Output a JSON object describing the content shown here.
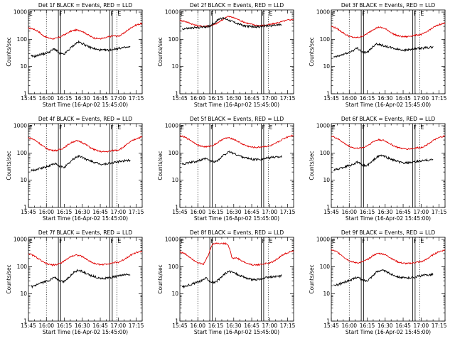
{
  "chart_data": {
    "type": "line",
    "x_tick_labels": [
      "15:45",
      "16:00",
      "16:15",
      "16:30",
      "16:45",
      "17:00",
      "17:15"
    ],
    "y_tick_labels": [
      "1",
      "10",
      "100",
      "1000"
    ],
    "ylim": [
      1,
      1200
    ],
    "y_scale": "log",
    "x_range_minutes_after_start": [
      0,
      95
    ],
    "ylabel": "Counts/sec",
    "xlabel": "Start Time (16-Apr-02 15:45:00)",
    "legend_text": "BLACK = Events, RED = LLD",
    "markers": {
      "dotted_minutes": [
        15,
        74
      ],
      "solid_minutes": [
        25,
        27,
        68,
        70
      ],
      "labels": [
        {
          "text": "E",
          "minute": 0
        },
        {
          "text": "F",
          "minute": 25
        },
        {
          "text": "F",
          "minute": 68
        },
        {
          "text": "E",
          "minute": 74
        }
      ]
    },
    "panels": [
      {
        "title": "Det 1f BLACK = Events, RED = LLD",
        "series_red": [
          260,
          240,
          200,
          140,
          115,
          105,
          110,
          130,
          160,
          200,
          220,
          210,
          170,
          130,
          110,
          105,
          110,
          125,
          135,
          130,
          160,
          220,
          290,
          350,
          380
        ],
        "series_black": [
          24,
          24,
          28,
          30,
          35,
          45,
          30,
          28,
          40,
          60,
          80,
          70,
          55,
          48,
          42,
          40,
          40,
          42,
          45,
          48,
          50,
          52
        ],
        "black_start": 2,
        "black_end": 85
      },
      {
        "title": "Det 2f BLACK = Events, RED = LLD",
        "series_red": [
          500,
          460,
          400,
          340,
          310,
          300,
          310,
          330,
          400,
          520,
          700,
          650,
          560,
          470,
          400,
          360,
          330,
          320,
          330,
          350,
          380,
          420,
          470,
          520,
          540
        ],
        "series_black": [
          240,
          250,
          260,
          270,
          280,
          290,
          320,
          420,
          600,
          580,
          500,
          420,
          360,
          320,
          300,
          290,
          290,
          300,
          310,
          320,
          330,
          340
        ],
        "black_start": 2,
        "black_end": 85
      },
      {
        "title": "Det 3f BLACK = Events, RED = LLD",
        "series_red": [
          300,
          260,
          200,
          150,
          125,
          115,
          120,
          140,
          180,
          240,
          280,
          260,
          210,
          160,
          135,
          125,
          125,
          135,
          145,
          150,
          180,
          240,
          300,
          360,
          390
        ],
        "series_black": [
          22,
          24,
          28,
          32,
          38,
          48,
          34,
          32,
          48,
          70,
          62,
          55,
          50,
          45,
          42,
          40,
          42,
          44,
          46,
          48,
          50,
          52
        ],
        "black_start": 2,
        "black_end": 85
      },
      {
        "title": "Det 4f BLACK = Events, RED = LLD",
        "series_red": [
          370,
          320,
          250,
          180,
          140,
          125,
          125,
          140,
          180,
          240,
          280,
          260,
          210,
          160,
          130,
          115,
          110,
          115,
          125,
          130,
          160,
          220,
          290,
          350,
          390
        ],
        "series_black": [
          22,
          24,
          27,
          30,
          34,
          42,
          32,
          30,
          40,
          60,
          78,
          68,
          55,
          48,
          42,
          38,
          40,
          42,
          46,
          50,
          52,
          55
        ],
        "black_start": 2,
        "black_end": 85
      },
      {
        "title": "Det 5f BLACK = Events, RED = LLD",
        "series_red": [
          430,
          380,
          310,
          240,
          190,
          170,
          170,
          190,
          240,
          320,
          360,
          340,
          280,
          220,
          185,
          165,
          160,
          165,
          175,
          180,
          210,
          270,
          340,
          410,
          450
        ],
        "series_black": [
          40,
          42,
          46,
          50,
          55,
          62,
          50,
          48,
          62,
          90,
          110,
          95,
          80,
          70,
          62,
          58,
          58,
          60,
          65,
          70,
          72,
          75
        ],
        "black_start": 2,
        "black_end": 85
      },
      {
        "title": "Det 6f BLACK = Events, RED = LLD",
        "series_red": [
          420,
          360,
          280,
          210,
          170,
          150,
          150,
          165,
          205,
          270,
          310,
          290,
          240,
          190,
          160,
          145,
          140,
          145,
          155,
          160,
          190,
          250,
          320,
          380,
          420
        ],
        "series_black": [
          24,
          26,
          30,
          34,
          38,
          46,
          36,
          34,
          46,
          68,
          82,
          72,
          60,
          52,
          46,
          42,
          44,
          46,
          50,
          52,
          55,
          58
        ],
        "black_start": 2,
        "black_end": 85
      },
      {
        "title": "Det 7f BLACK = Events, RED = LLD",
        "series_red": [
          300,
          260,
          200,
          150,
          125,
          115,
          120,
          140,
          180,
          240,
          270,
          250,
          200,
          155,
          130,
          120,
          120,
          130,
          140,
          145,
          175,
          230,
          290,
          340,
          370
        ],
        "series_black": [
          18,
          20,
          24,
          28,
          32,
          42,
          30,
          28,
          40,
          60,
          75,
          65,
          52,
          46,
          40,
          37,
          38,
          40,
          44,
          47,
          50,
          52
        ],
        "black_start": 2,
        "black_end": 85
      },
      {
        "title": "Det 8f BLACK = Events, RED = LLD",
        "series_red": [
          350,
          300,
          230,
          170,
          135,
          120,
          250,
          700,
          720,
          710,
          700,
          200,
          210,
          165,
          135,
          120,
          115,
          120,
          130,
          135,
          165,
          220,
          290,
          340,
          370
        ],
        "series_black": [
          18,
          20,
          23,
          26,
          30,
          38,
          28,
          26,
          36,
          55,
          68,
          60,
          48,
          42,
          36,
          33,
          34,
          36,
          40,
          42,
          44,
          46
        ],
        "black_start": 2,
        "black_end": 85
      },
      {
        "title": "Det 9f BLACK = Events, RED = LLD",
        "series_red": [
          420,
          360,
          280,
          200,
          160,
          140,
          140,
          160,
          200,
          270,
          310,
          290,
          240,
          185,
          150,
          135,
          130,
          135,
          145,
          150,
          180,
          240,
          310,
          370,
          410
        ],
        "series_black": [
          20,
          22,
          26,
          30,
          34,
          42,
          32,
          30,
          42,
          62,
          76,
          66,
          54,
          47,
          41,
          38,
          39,
          41,
          45,
          48,
          50,
          53
        ],
        "black_start": 2,
        "black_end": 85
      }
    ]
  }
}
